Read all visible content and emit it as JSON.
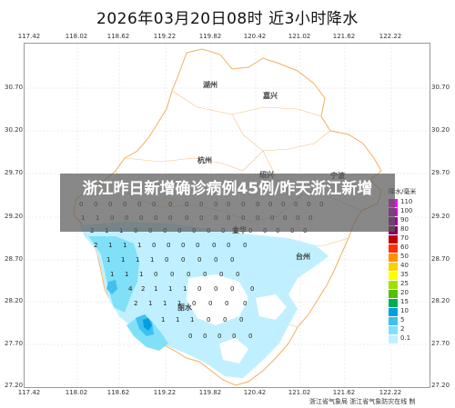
{
  "title": "2026年03月20日08时  近3小时降水",
  "x_ticks": [
    "117.42",
    "118.02",
    "118.62",
    "119.22",
    "119.82",
    "120.42",
    "121.02",
    "121.62",
    "122.22"
  ],
  "y_ticks": [
    "30.70",
    "30.20",
    "29.70",
    "29.20",
    "28.70",
    "28.20",
    "27.70",
    "27.20"
  ],
  "cities": {
    "huzhou": "湖州",
    "jiaxing": "嘉兴",
    "hangzhou": "杭州",
    "shaoxing": "绍兴",
    "ningbo": "宁波",
    "jinhua": "金华",
    "taizhou": "台州",
    "lishui": "丽水"
  },
  "legend": {
    "title": "降水/毫米",
    "items": [
      {
        "label": "110",
        "color": "#ff00ff"
      },
      {
        "label": "100",
        "color": "#d000d0"
      },
      {
        "label": "90",
        "color": "#a000a0"
      },
      {
        "label": "80",
        "color": "#800060"
      },
      {
        "label": "70",
        "color": "#c00000"
      },
      {
        "label": "60",
        "color": "#ff3000"
      },
      {
        "label": "50",
        "color": "#ff9000"
      },
      {
        "label": "40",
        "color": "#ffd000"
      },
      {
        "label": "35",
        "color": "#ffff00"
      },
      {
        "label": "25",
        "color": "#a0e000"
      },
      {
        "label": "20",
        "color": "#50c000"
      },
      {
        "label": "15",
        "color": "#00b050"
      },
      {
        "label": "10",
        "color": "#00a0e0"
      },
      {
        "label": "5",
        "color": "#40c0f0"
      },
      {
        "label": "2",
        "color": "#80e0f8"
      },
      {
        "label": "0.1",
        "color": "#c0f0ff"
      }
    ]
  },
  "station_values": [
    "0",
    "0",
    "0",
    "0",
    "0",
    "0",
    "0",
    "0",
    "0",
    "0",
    "0",
    "0",
    "0",
    "0",
    "0",
    "0",
    "0",
    "0",
    "1",
    "1",
    "0",
    "0",
    "0",
    "0",
    "0",
    "0",
    "0",
    "0",
    "0",
    "0",
    "0",
    "0",
    "0",
    "0",
    "0",
    "2",
    "1",
    "1",
    "0",
    "0",
    "0",
    "0",
    "0",
    "0",
    "0",
    "0",
    "0",
    "0",
    "0",
    "0",
    "0",
    "2",
    "1",
    "1",
    "1",
    "0",
    "0",
    "0",
    "0",
    "0",
    "0",
    "0",
    "1",
    "1",
    "1",
    "1",
    "0",
    "0",
    "0",
    "0",
    "0",
    "1",
    "1",
    "1",
    "0",
    "0",
    "0",
    "0",
    "0",
    "0",
    "4",
    "2",
    "1",
    "1",
    "1",
    "0",
    "0",
    "0",
    "0",
    "2",
    "1",
    "1",
    "1",
    "0",
    "0",
    "0",
    "0",
    "1",
    "1",
    "1",
    "0",
    "0",
    "0",
    "0",
    "0",
    "0",
    "0",
    "0"
  ],
  "banner": {
    "text": "浙江昨日新增确诊病例45例/昨天浙江新增"
  },
  "footer": "浙江省气象局  浙江省气象防灾在线 制"
}
